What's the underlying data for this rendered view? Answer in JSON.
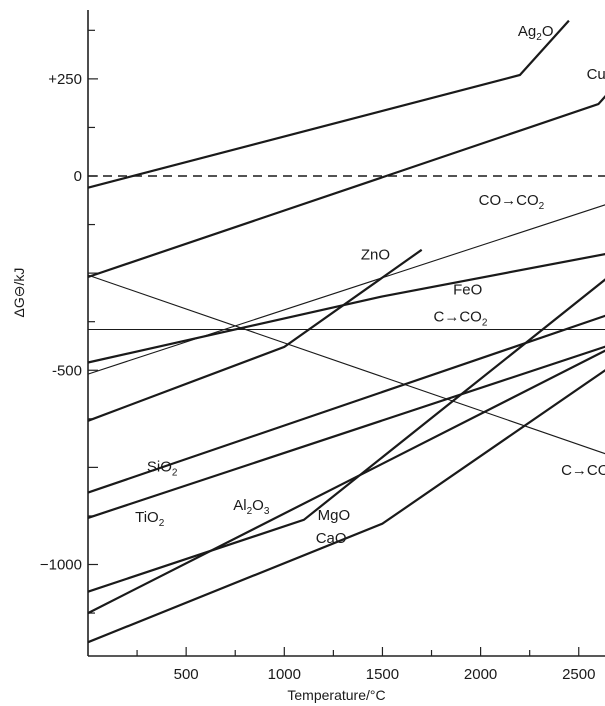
{
  "chart_data": {
    "type": "line",
    "xlabel": "Temperature/°C",
    "ylabel": "ΔG⊖/kJ",
    "xlim": [
      0,
      2750
    ],
    "ylim": [
      -1240,
      400
    ],
    "x_ticks": [
      500,
      1000,
      1500,
      2000,
      2500
    ],
    "x_tick_labels": [
      "500",
      "1000",
      "1500",
      "2000",
      "2500"
    ],
    "y_ticks": [
      250,
      0,
      -500,
      -1000
    ],
    "y_tick_labels": [
      "+250",
      "0",
      "-500",
      "−1000"
    ],
    "grid": false,
    "series": [
      {
        "name": "Ag2O",
        "label_base": "Ag",
        "label_sub": "2",
        "label_tail": "O",
        "weight": "heavy",
        "dash": false,
        "points": [
          [
            0,
            -30
          ],
          [
            2200,
            260
          ],
          [
            2450,
            400
          ]
        ]
      },
      {
        "name": "CuO",
        "label_base": "CuO",
        "weight": "heavy",
        "dash": false,
        "points": [
          [
            0,
            -260
          ],
          [
            2600,
            185
          ],
          [
            2750,
            270
          ]
        ]
      },
      {
        "name": "ZnO",
        "label_base": "ZnO",
        "weight": "heavy",
        "dash": false,
        "points": [
          [
            0,
            -630
          ],
          [
            1000,
            -440
          ],
          [
            1700,
            -190
          ]
        ]
      },
      {
        "name": "CO→CO2",
        "label_base": "CO→CO",
        "label_sub": "2",
        "weight": "thin",
        "dash": false,
        "points": [
          [
            0,
            -510
          ],
          [
            2750,
            -55
          ]
        ]
      },
      {
        "name": "FeO",
        "label_base": "FeO",
        "weight": "heavy",
        "dash": false,
        "points": [
          [
            0,
            -480
          ],
          [
            1500,
            -310
          ],
          [
            2750,
            -190
          ]
        ]
      },
      {
        "name": "C→CO2",
        "label_base": "C→CO",
        "label_sub": "2",
        "weight": "thin",
        "dash": false,
        "points": [
          [
            0,
            -395
          ],
          [
            2750,
            -395
          ]
        ]
      },
      {
        "name": "C→CO",
        "label_base": "C→CO",
        "weight": "thin",
        "dash": false,
        "points": [
          [
            0,
            -255
          ],
          [
            2750,
            -735
          ]
        ]
      },
      {
        "name": "SiO2",
        "label_base": "SiO",
        "label_sub": "2",
        "weight": "heavy",
        "dash": false,
        "points": [
          [
            0,
            -815
          ],
          [
            2750,
            -340
          ]
        ]
      },
      {
        "name": "TiO2",
        "label_base": "TiO",
        "label_sub": "2",
        "weight": "heavy",
        "dash": false,
        "points": [
          [
            0,
            -880
          ],
          [
            2750,
            -420
          ]
        ]
      },
      {
        "name": "Al2O3",
        "label_base": "Al",
        "label_sub": "2",
        "label_tail": "O",
        "label_sub2": "3",
        "weight": "heavy",
        "dash": false,
        "points": [
          [
            0,
            -1125
          ],
          [
            2750,
            -420
          ]
        ]
      },
      {
        "name": "MgO",
        "label_base": "MgO",
        "weight": "heavy",
        "dash": false,
        "points": [
          [
            0,
            -1070
          ],
          [
            1100,
            -885
          ],
          [
            2750,
            -220
          ]
        ]
      },
      {
        "name": "CaO",
        "label_base": "CaO",
        "weight": "heavy",
        "dash": false,
        "points": [
          [
            0,
            -1200
          ],
          [
            1500,
            -895
          ],
          [
            2750,
            -460
          ]
        ]
      },
      {
        "name": "zero",
        "weight": "dashed",
        "dash": true,
        "points": [
          [
            0,
            0
          ],
          [
            2750,
            0
          ]
        ]
      }
    ],
    "labels": [
      {
        "series": "Ag2O",
        "x": 2190,
        "y": 360
      },
      {
        "series": "CuO",
        "x": 2540,
        "y": 250
      },
      {
        "series": "CO→CO2",
        "x": 1990,
        "y": -75
      },
      {
        "series": "ZnO",
        "x": 1390,
        "y": -215
      },
      {
        "series": "FeO",
        "x": 1860,
        "y": -305
      },
      {
        "series": "C→CO2",
        "x": 1760,
        "y": -375
      },
      {
        "series": "SiO2",
        "x": 300,
        "y": -760
      },
      {
        "series": "C→CO",
        "x": 2410,
        "y": -770
      },
      {
        "series": "Al2O3",
        "x": 740,
        "y": -860
      },
      {
        "series": "TiO2",
        "x": 240,
        "y": -890
      },
      {
        "series": "MgO",
        "x": 1170,
        "y": -885
      },
      {
        "series": "CaO",
        "x": 1160,
        "y": -945
      }
    ]
  }
}
